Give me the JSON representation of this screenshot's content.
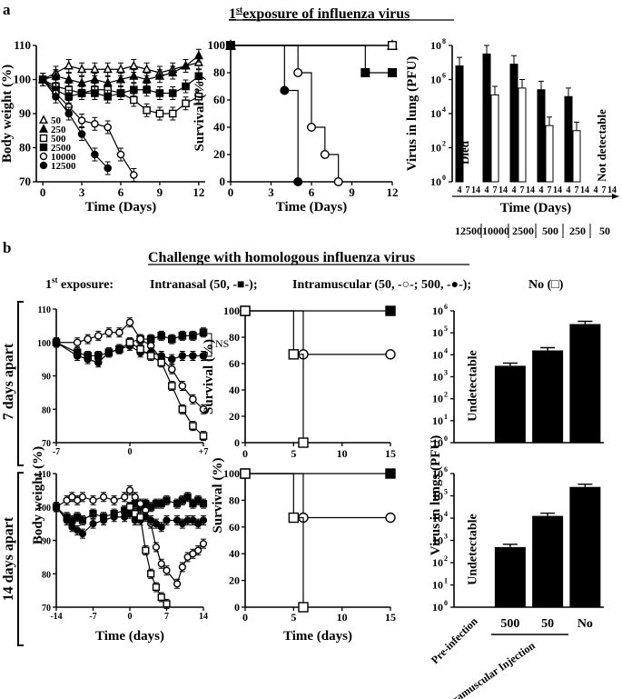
{
  "panel_a": {
    "letter": "a",
    "title_sup": "st",
    "title_main": "1",
    "title_rest": "exposure of influenza virus"
  },
  "panel_b": {
    "letter": "b",
    "title": "Challenge with homologous influenza virus",
    "exposure_label": "1",
    "exposure_sup": "st",
    "exposure_rest": " exposure:",
    "intranasal": "Intranasal (50, -■-);",
    "intramuscular": "Intramuscular (50, -○-; 500, -●-);",
    "no": "No (□)",
    "row1": "7 days apart",
    "row2": "14 days apart",
    "ns": "NS"
  },
  "chart_data": [
    {
      "id": "a_weight",
      "type": "line",
      "title": "",
      "xlabel": "Time (Days)",
      "ylabel": "Body weight (%)",
      "xlim": [
        -0.5,
        12.5
      ],
      "ylim": [
        70,
        110
      ],
      "xticks": [
        0,
        3,
        6,
        9,
        12
      ],
      "yticks": [
        70,
        80,
        90,
        100,
        110
      ],
      "legend": [
        "50",
        "250",
        "500",
        "2500",
        "10000",
        "12500"
      ],
      "series": [
        {
          "name": "50",
          "marker": "triangle-open",
          "x": [
            0,
            1,
            2,
            3,
            4,
            5,
            6,
            7,
            8,
            9,
            10,
            11,
            12
          ],
          "y": [
            100,
            102,
            104,
            103,
            103,
            103,
            103,
            104,
            103,
            102,
            103,
            104,
            105
          ]
        },
        {
          "name": "250",
          "marker": "triangle",
          "x": [
            0,
            1,
            2,
            3,
            4,
            5,
            6,
            7,
            8,
            9,
            10,
            11,
            12
          ],
          "y": [
            100,
            101,
            100,
            99,
            100,
            99,
            100,
            101,
            100,
            101,
            102,
            104,
            107
          ]
        },
        {
          "name": "500",
          "marker": "square-open",
          "x": [
            0,
            1,
            2,
            3,
            4,
            5,
            6,
            7,
            8,
            9,
            10,
            11,
            12
          ],
          "y": [
            100,
            98,
            97,
            96,
            97,
            97,
            96,
            94,
            91,
            90,
            90,
            93,
            95
          ]
        },
        {
          "name": "2500",
          "marker": "square",
          "x": [
            0,
            1,
            2,
            3,
            4,
            5,
            6,
            7,
            8,
            9,
            10,
            11,
            12
          ],
          "y": [
            100,
            97,
            95,
            96,
            96,
            95,
            96,
            97,
            97,
            96,
            96,
            98,
            101
          ]
        },
        {
          "name": "10000",
          "marker": "circle-open",
          "x": [
            0,
            1,
            2,
            3,
            4,
            5,
            6,
            7
          ],
          "y": [
            100,
            96,
            92,
            88,
            87,
            86,
            78,
            72
          ]
        },
        {
          "name": "12500",
          "marker": "circle",
          "x": [
            0,
            1,
            2,
            3,
            4,
            5
          ],
          "y": [
            100,
            95,
            90,
            84,
            78,
            74
          ]
        }
      ]
    },
    {
      "id": "a_survival",
      "type": "line",
      "xlabel": "Time (Days)",
      "ylabel": "Survival (%)",
      "xlim": [
        0,
        12
      ],
      "ylim": [
        0,
        100
      ],
      "xticks": [
        0,
        3,
        6,
        9,
        12
      ],
      "yticks": [
        0,
        20,
        40,
        60,
        80,
        100
      ],
      "legend": [
        "50",
        "250",
        "500",
        "2500",
        "10000",
        "12500"
      ],
      "series": [
        {
          "name": "50",
          "marker": "triangle-open",
          "x": [
            0,
            12
          ],
          "y": [
            100,
            100
          ]
        },
        {
          "name": "250",
          "marker": "triangle",
          "x": [
            0,
            12
          ],
          "y": [
            100,
            100
          ]
        },
        {
          "name": "500",
          "marker": "square-open",
          "x": [
            0,
            12
          ],
          "y": [
            100,
            100
          ]
        },
        {
          "name": "2500",
          "marker": "square",
          "x": [
            0,
            8,
            10,
            12
          ],
          "y": [
            100,
            100,
            80,
            80
          ]
        },
        {
          "name": "10000",
          "marker": "circle-open",
          "x": [
            0,
            5,
            6,
            7,
            8
          ],
          "y": [
            100,
            80,
            40,
            20,
            0
          ]
        },
        {
          "name": "12500",
          "marker": "circle",
          "x": [
            0,
            4,
            5
          ],
          "y": [
            100,
            67,
            0
          ]
        }
      ]
    },
    {
      "id": "a_virus",
      "type": "bar",
      "ylabel": "Virus in lung (PFU)",
      "xlabel": "Time (Days)",
      "log_range": [
        0,
        8
      ],
      "yticks": [
        "10^0",
        "10^2",
        "10^4",
        "10^6",
        "10^8"
      ],
      "ytick_base": "10",
      "ytick_exps": [
        "0",
        "2",
        "4",
        "6",
        "8"
      ],
      "groups": [
        {
          "dose": "12500",
          "ticks": [
            "4",
            "7",
            "14"
          ],
          "note": "Died",
          "log_values": [
            6.8,
            null,
            null
          ]
        },
        {
          "dose": "10000",
          "ticks": [
            "4",
            "7",
            "14"
          ],
          "note": "",
          "log_values": [
            7.5,
            5.1,
            null
          ]
        },
        {
          "dose": "2500",
          "ticks": [
            "4",
            "7",
            "14"
          ],
          "note": "",
          "log_values": [
            6.9,
            5.5,
            null
          ]
        },
        {
          "dose": "500",
          "ticks": [
            "4",
            "7",
            "14"
          ],
          "note": "",
          "log_values": [
            5.4,
            3.3,
            null
          ]
        },
        {
          "dose": "250",
          "ticks": [
            "4",
            "7",
            "14"
          ],
          "note": "",
          "log_values": [
            5.0,
            3.0,
            null
          ]
        },
        {
          "dose": "50",
          "ticks": [
            "4",
            "7",
            "14"
          ],
          "note": "Not detectable",
          "log_values": [
            null,
            null,
            null
          ]
        }
      ]
    },
    {
      "id": "b_weight_7",
      "type": "line",
      "ylabel": "Body weight (%)",
      "xlim": [
        -7,
        7
      ],
      "ylim": [
        70,
        110
      ],
      "xticks": [
        "-7",
        "0",
        "+7"
      ],
      "yticks": [
        70,
        80,
        90,
        100,
        110
      ],
      "series": [
        {
          "name": "Intranasal 50",
          "marker": "square",
          "x": [
            -7,
            -5,
            -4,
            -3,
            -2,
            -1,
            0,
            1,
            2,
            3,
            4,
            5,
            6,
            7
          ],
          "y": [
            100,
            97,
            96,
            96,
            97,
            98,
            100,
            101,
            101,
            102,
            101,
            102,
            102,
            103
          ]
        },
        {
          "name": "Intramuscular 50",
          "marker": "circle-open",
          "x": [
            -7,
            -5,
            -4,
            -3,
            -2,
            -1,
            0,
            1,
            2,
            3,
            4,
            5,
            6,
            7
          ],
          "y": [
            100,
            100,
            101,
            102,
            103,
            103,
            106,
            101,
            99,
            95,
            92,
            87,
            83,
            80
          ]
        },
        {
          "name": "Intramuscular 500",
          "marker": "circle",
          "x": [
            -7,
            -5,
            -4,
            -3,
            -2,
            -1,
            0,
            1,
            2,
            3,
            4,
            5,
            6,
            7
          ],
          "y": [
            100,
            96,
            95,
            94,
            97,
            98,
            99,
            97,
            97,
            96,
            95,
            96,
            96,
            96
          ]
        },
        {
          "name": "No",
          "marker": "square-open",
          "x": [
            0,
            1,
            2,
            3,
            4,
            5,
            6,
            7
          ],
          "y": [
            100,
            98,
            96,
            94,
            87,
            80,
            75,
            72
          ]
        }
      ]
    },
    {
      "id": "b_survival_7",
      "type": "line",
      "ylabel": "Survival (%)",
      "xlim": [
        0,
        15
      ],
      "ylim": [
        0,
        100
      ],
      "series": [
        {
          "name": "Intranasal 50",
          "marker": "square",
          "x": [
            0,
            15
          ],
          "y": [
            100,
            100
          ]
        },
        {
          "name": "Intramuscular 50/500",
          "marker": "circle-open",
          "x": [
            0,
            6,
            15
          ],
          "y": [
            100,
            67,
            67
          ]
        },
        {
          "name": "No",
          "marker": "square-open",
          "x": [
            0,
            5,
            6
          ],
          "y": [
            100,
            67,
            0
          ]
        }
      ]
    },
    {
      "id": "b_virus_7",
      "type": "bar",
      "ylabel": "Virus in lungs (PFU)",
      "log_range": [
        0,
        6
      ],
      "ytick_exps": [
        "0",
        "1",
        "2",
        "3",
        "4",
        "5",
        "6"
      ],
      "ytick_base": "10",
      "categories": [
        "Pre-infection",
        "500",
        "50",
        "No"
      ],
      "log_values": [
        null,
        3.5,
        4.2,
        5.4
      ],
      "note": "Undetectable"
    },
    {
      "id": "b_weight_14",
      "type": "line",
      "xlabel": "Time (days)",
      "xlim": [
        -14,
        14
      ],
      "ylim": [
        70,
        110
      ],
      "xticks": [
        "-14",
        "-7",
        "0",
        "7",
        "14"
      ],
      "yticks": [
        70,
        80,
        90,
        100,
        110
      ],
      "series": [
        {
          "name": "Intranasal 50",
          "marker": "square",
          "x": [
            -14,
            -12,
            -11,
            -10,
            -9,
            -7,
            -5,
            -3,
            -1,
            0,
            1,
            2,
            3,
            4,
            5,
            6,
            7,
            9,
            10,
            11,
            12,
            13,
            14
          ],
          "y": [
            100,
            97,
            96,
            97,
            96,
            98,
            97,
            98,
            99,
            100,
            101,
            100,
            101,
            100,
            101,
            101,
            102,
            101,
            102,
            103,
            101,
            102,
            101
          ]
        },
        {
          "name": "Intramuscular 50",
          "marker": "circle-open",
          "x": [
            -14,
            -12,
            -11,
            -10,
            -9,
            -7,
            -5,
            -3,
            -1,
            0,
            1,
            2,
            3,
            4,
            5,
            6,
            7,
            9,
            10,
            11,
            12,
            13,
            14
          ],
          "y": [
            100,
            102,
            103,
            102,
            103,
            102,
            103,
            102,
            103,
            105,
            103,
            101,
            99,
            95,
            88,
            83,
            81,
            77,
            82,
            85,
            86,
            87,
            89
          ]
        },
        {
          "name": "Intramuscular 500",
          "marker": "circle",
          "x": [
            -14,
            -12,
            -11,
            -10,
            -9,
            -7,
            -5,
            -3,
            -1,
            0,
            1,
            2,
            3,
            4,
            5,
            6,
            7,
            9,
            10,
            11,
            12,
            13,
            14
          ],
          "y": [
            100,
            96,
            94,
            93,
            92,
            95,
            96,
            97,
            97,
            98,
            96,
            96,
            97,
            96,
            95,
            94,
            96,
            96,
            95,
            96,
            96,
            95,
            96
          ]
        },
        {
          "name": "No",
          "marker": "square-open",
          "x": [
            0,
            1,
            2,
            3,
            4,
            5,
            6,
            7
          ],
          "y": [
            100,
            98,
            97,
            87,
            80,
            76,
            73,
            71
          ]
        }
      ]
    },
    {
      "id": "b_survival_14",
      "type": "line",
      "xlabel": "Time (days)",
      "xlim": [
        0,
        15
      ],
      "ylim": [
        0,
        100
      ],
      "xticks": [
        0,
        5,
        10,
        15
      ],
      "yticks": [
        0,
        20,
        40,
        60,
        80,
        100
      ],
      "series": [
        {
          "name": "Intranasal 50",
          "marker": "square",
          "x": [
            0,
            15
          ],
          "y": [
            100,
            100
          ]
        },
        {
          "name": "Intramuscular 50/500",
          "marker": "circle-open",
          "x": [
            0,
            6,
            15
          ],
          "y": [
            100,
            67,
            67
          ]
        },
        {
          "name": "No",
          "marker": "square-open",
          "x": [
            0,
            5,
            6
          ],
          "y": [
            100,
            67,
            0
          ]
        }
      ]
    },
    {
      "id": "b_virus_14",
      "type": "bar",
      "ylabel": "Virus in lungs (PFU)",
      "log_range": [
        0,
        6
      ],
      "ytick_exps": [
        "0",
        "1",
        "2",
        "3",
        "4",
        "5",
        "6"
      ],
      "ytick_base": "10",
      "categories": [
        "Pre-infection",
        "500",
        "50",
        "No"
      ],
      "log_values": [
        null,
        2.7,
        4.1,
        5.4
      ],
      "note": "Undetectable",
      "group_label": "Pre-intramuscular Injection"
    }
  ]
}
